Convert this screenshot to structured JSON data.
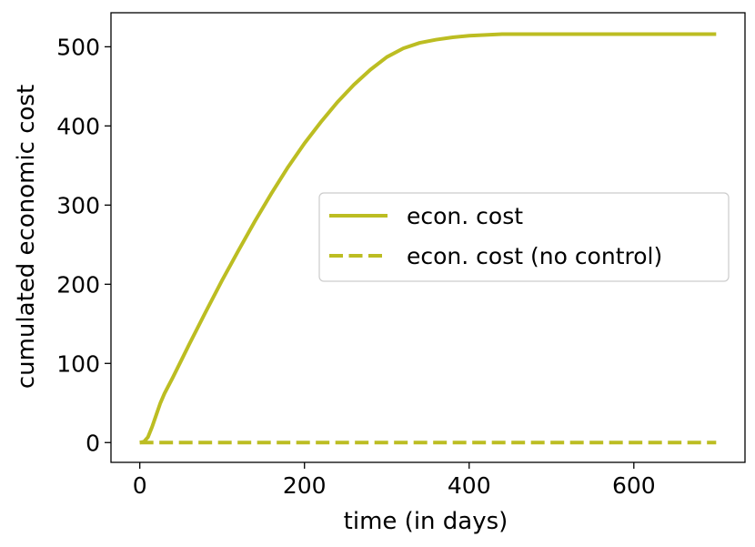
{
  "chart_data": {
    "type": "line",
    "xlabel": "time (in days)",
    "ylabel": "cumulated economic cost",
    "xlim": [
      -35,
      735
    ],
    "ylim": [
      -25,
      543
    ],
    "xticks": [
      0,
      200,
      400,
      600
    ],
    "yticks": [
      0,
      100,
      200,
      300,
      400,
      500
    ],
    "grid": false,
    "legend_position": "center-right",
    "color": "#bcbd22",
    "series": [
      {
        "name": "econ. cost",
        "style": "solid",
        "x": [
          0,
          5,
          10,
          15,
          20,
          25,
          30,
          40,
          50,
          60,
          80,
          100,
          120,
          140,
          160,
          180,
          200,
          220,
          240,
          260,
          280,
          300,
          320,
          340,
          360,
          380,
          400,
          420,
          440,
          460,
          480,
          500,
          550,
          600,
          650,
          700
        ],
        "y": [
          0,
          1,
          7,
          20,
          35,
          50,
          62,
          82,
          103,
          124,
          165,
          205,
          243,
          280,
          315,
          348,
          378,
          405,
          430,
          452,
          471,
          487,
          498,
          505,
          509,
          512,
          514,
          515,
          516,
          516,
          516,
          516,
          516,
          516,
          516,
          516
        ]
      },
      {
        "name": "econ. cost (no control)",
        "style": "dashed",
        "x": [
          0,
          700
        ],
        "y": [
          0,
          0
        ]
      }
    ]
  }
}
